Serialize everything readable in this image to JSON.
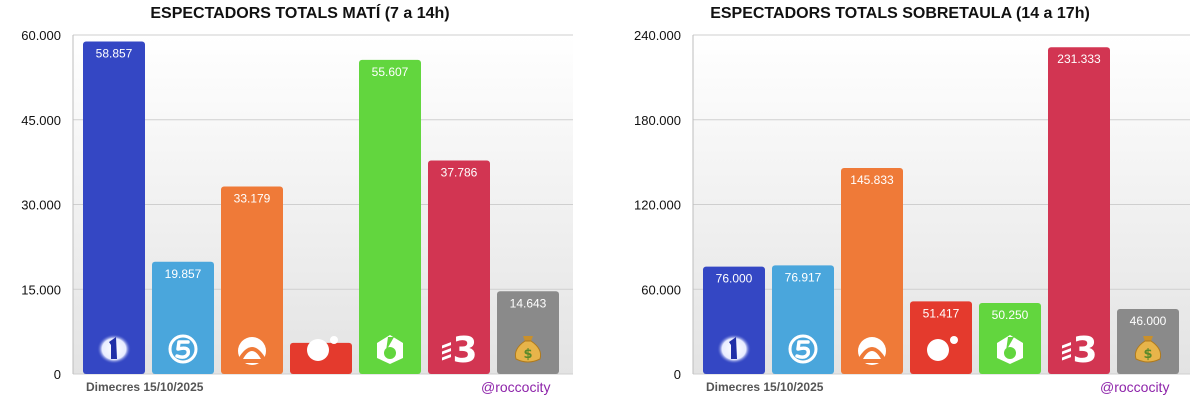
{
  "chart_data": [
    {
      "type": "bar",
      "title": "ESPECTADORS TOTALS MATÍ (7 a 14h)",
      "categories": [
        "La 1",
        "Telecinco",
        "Antena 3",
        "Cuatro",
        "laSexta",
        "TV3",
        "Altres"
      ],
      "values": [
        58857,
        19857,
        33179,
        5500,
        55607,
        37786,
        14643
      ],
      "value_labels": [
        "58.857",
        "19.857",
        "33.179",
        "",
        "55.607",
        "37.786",
        "14.643"
      ],
      "ylim": [
        0,
        60000
      ],
      "yticks": [
        0,
        15000,
        30000,
        45000,
        60000
      ],
      "ytick_labels": [
        "0",
        "15.000",
        "30.000",
        "45.000",
        "60.000"
      ],
      "date_label": "Dimecres 15/10/2025",
      "credit": "@roccocity",
      "grid": true
    },
    {
      "type": "bar",
      "title": "ESPECTADORS TOTALS SOBRETAULA (14 a 17h)",
      "categories": [
        "La 1",
        "Telecinco",
        "Antena 3",
        "Cuatro",
        "laSexta",
        "TV3",
        "Altres"
      ],
      "values": [
        76000,
        76917,
        145833,
        51417,
        50250,
        231333,
        46000
      ],
      "value_labels": [
        "76.000",
        "76.917",
        "145.833",
        "51.417",
        "50.250",
        "231.333",
        "46.000"
      ],
      "ylim": [
        0,
        240000
      ],
      "yticks": [
        0,
        60000,
        120000,
        180000,
        240000
      ],
      "ytick_labels": [
        "0",
        "60.000",
        "120.000",
        "180.000",
        "240.000"
      ],
      "date_label": "Dimecres 15/10/2025",
      "credit": "@roccocity",
      "grid": true
    }
  ],
  "bar_colors": [
    "#3447c4",
    "#4aa6dc",
    "#ef7a38",
    "#e43a2d",
    "#62d63e",
    "#d23552",
    "#8a8a8a"
  ],
  "channel_icons": [
    "la1-icon",
    "telecinco-icon",
    "antena3-icon",
    "cuatro-icon",
    "lasexta-icon",
    "tv3-icon",
    "money-bag-icon"
  ]
}
